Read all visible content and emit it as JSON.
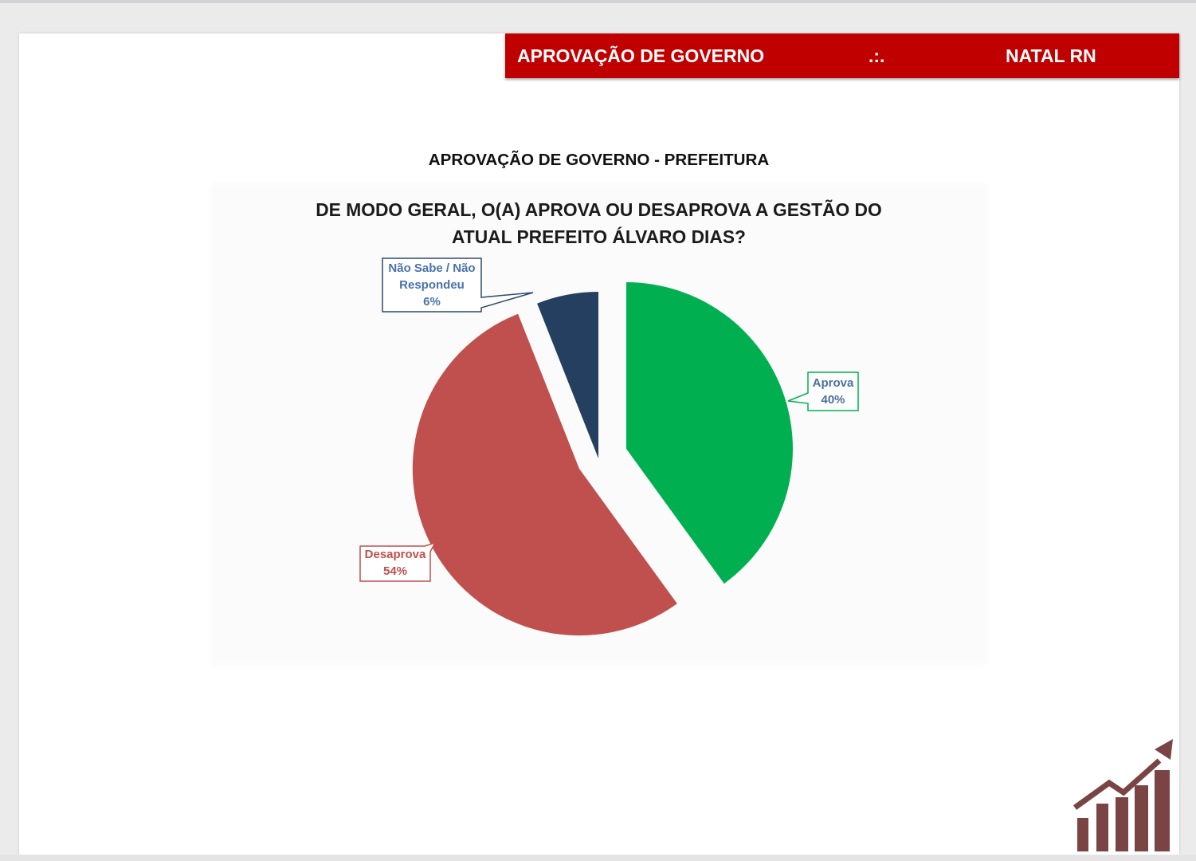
{
  "header": {
    "title": "APROVAÇÃO DE GOVERNO",
    "separator": ".:.",
    "location": "NATAL RN"
  },
  "chart_data": {
    "type": "pie",
    "title": "APROVAÇÃO DE GOVERNO - PREFEITURA",
    "question_lines": [
      "DE MODO GERAL, O(A) APROVA OU DESAPROVA A GESTÃO DO",
      "ATUAL PREFEITO ÁLVARO DIAS?"
    ],
    "exploded": true,
    "legend": "none",
    "slices": [
      {
        "label": "Aprova",
        "value": 40,
        "value_label": "40%",
        "color": "#00b050",
        "label_color": "#4b6fa0",
        "border_color": "#00b050"
      },
      {
        "label": "Desaprova",
        "value": 54,
        "value_label": "54%",
        "color": "#c0504d",
        "label_color": "#c0504d",
        "border_color": "#c0504d"
      },
      {
        "label": "Não Sabe / Não Respondeu",
        "value": 6,
        "value_label": "6%",
        "color": "#243f60",
        "label_color": "#4a72aa",
        "border_color": "#2f4a6b"
      }
    ]
  },
  "logo": {
    "icon": "growth-chart-icon",
    "color": "#7b4444"
  },
  "colors": {
    "header_bg": "#c00000",
    "header_text": "#ffffff",
    "page_bg": "#ffffff",
    "viewer_bg": "#ebebec"
  }
}
